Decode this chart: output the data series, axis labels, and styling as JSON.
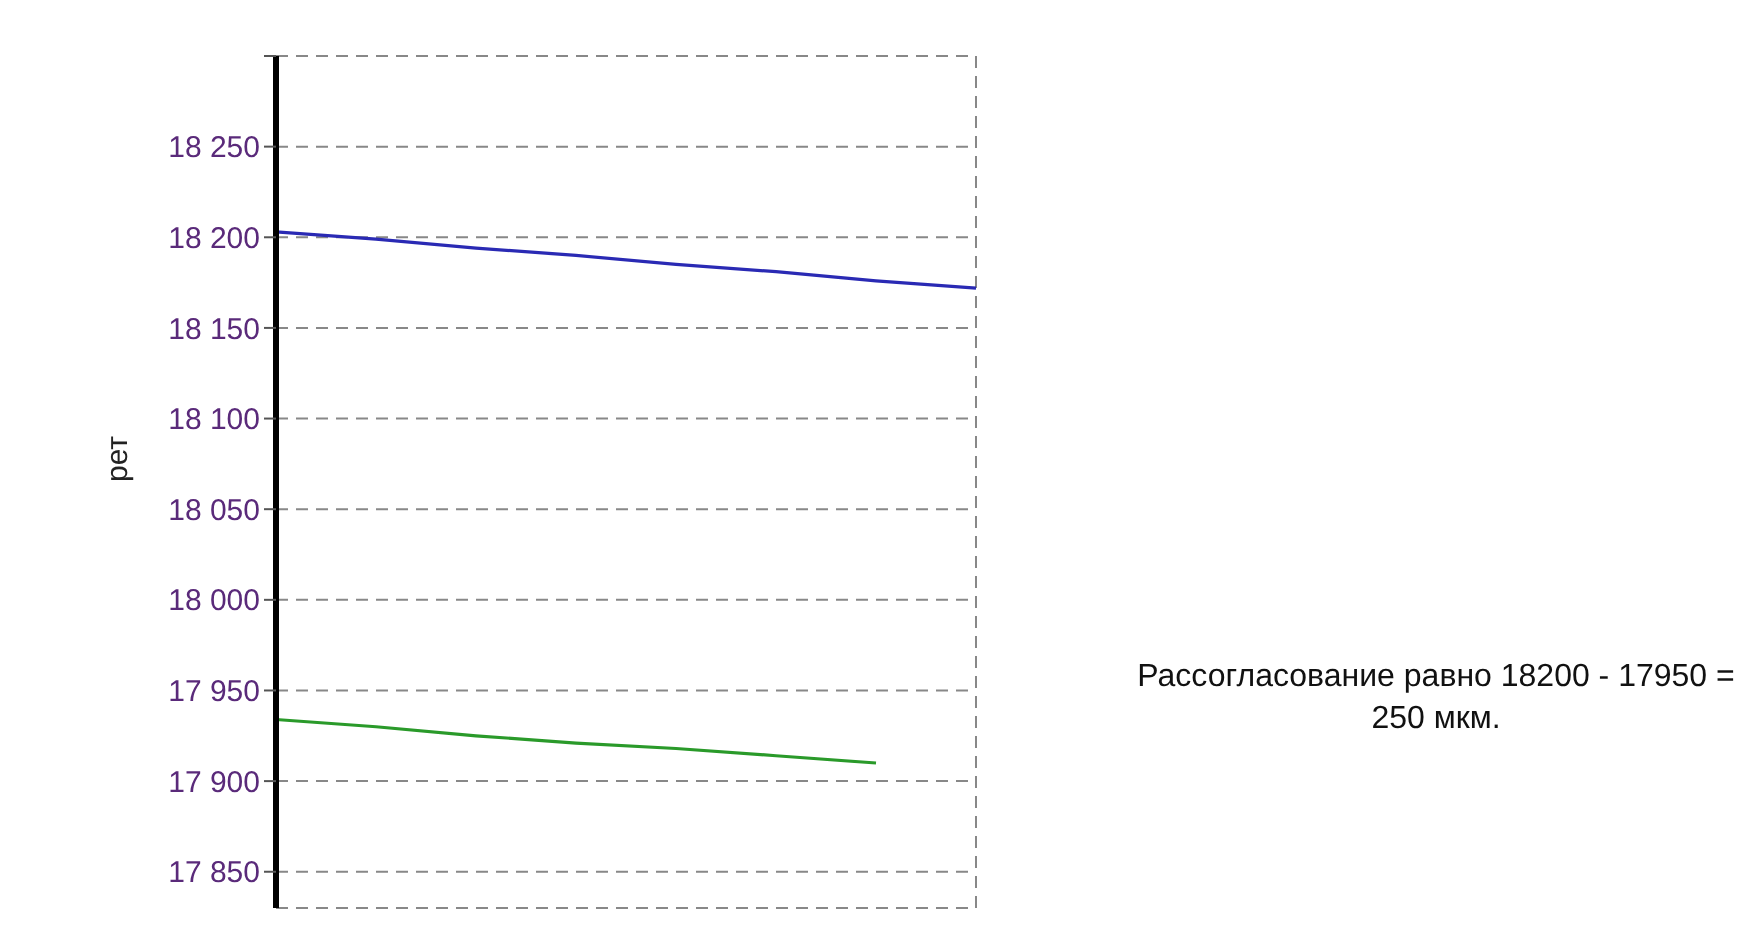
{
  "chart_data": {
    "type": "line",
    "ylabel": "рет",
    "annotations": [
      "Рассогласование равно 18200 - 17950 = 250 мкм."
    ],
    "categories": [
      null,
      null,
      null,
      null,
      null,
      null,
      null,
      null
    ],
    "series": [
      {
        "color": "#2a2ab4",
        "values": [
          18203,
          18199,
          18194,
          18190,
          18185,
          18181,
          18176,
          18172
        ]
      },
      {
        "color": "#2a9a2a",
        "values": [
          17934,
          17930,
          17925,
          17921,
          17918,
          17914,
          17910,
          null
        ]
      }
    ],
    "ylim": [
      17830,
      18300
    ],
    "yticks": [
      {
        "value": 17850,
        "label": "17 850"
      },
      {
        "value": 17900,
        "label": "17 900"
      },
      {
        "value": 17950,
        "label": "17 950"
      },
      {
        "value": 18000,
        "label": "18 000"
      },
      {
        "value": 18050,
        "label": "18 050"
      },
      {
        "value": 18100,
        "label": "18 100"
      },
      {
        "value": 18150,
        "label": "18 150"
      },
      {
        "value": 18200,
        "label": "18 200"
      },
      {
        "value": 18250,
        "label": "18 250"
      },
      {
        "value": 18300,
        "label": null
      }
    ],
    "grid": true,
    "tick_labels": "y",
    "marker": "none",
    "line_style": "solid"
  }
}
